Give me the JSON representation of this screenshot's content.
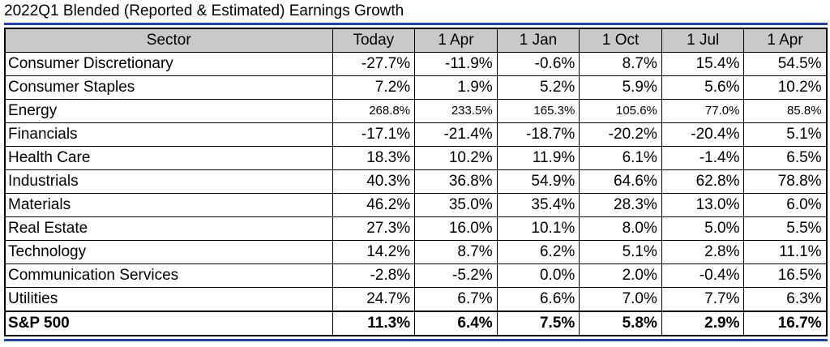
{
  "title": "2022Q1 Blended (Reported & Estimated) Earnings Growth",
  "colors": {
    "accent_rule": "#1f3fbf",
    "header_fill": "#c9c9c9"
  },
  "table": {
    "headers": [
      "Sector",
      "Today",
      "1 Apr",
      "1 Jan",
      "1 Oct",
      "1 Jul",
      "1 Apr"
    ],
    "rows": [
      {
        "sector": "Consumer Discretionary",
        "values": [
          "-27.7%",
          "-11.9%",
          "-0.6%",
          "8.7%",
          "15.4%",
          "54.5%"
        ]
      },
      {
        "sector": "Consumer Staples",
        "values": [
          "7.2%",
          "1.9%",
          "5.2%",
          "5.9%",
          "5.6%",
          "10.2%"
        ]
      },
      {
        "sector": "Energy",
        "values": [
          "268.8%",
          "233.5%",
          "165.3%",
          "105.6%",
          "77.0%",
          "85.8%"
        ]
      },
      {
        "sector": "Financials",
        "values": [
          "-17.1%",
          "-21.4%",
          "-18.7%",
          "-20.2%",
          "-20.4%",
          "5.1%"
        ]
      },
      {
        "sector": "Health Care",
        "values": [
          "18.3%",
          "10.2%",
          "11.9%",
          "6.1%",
          "-1.4%",
          "6.5%"
        ]
      },
      {
        "sector": "Industrials",
        "values": [
          "40.3%",
          "36.8%",
          "54.9%",
          "64.6%",
          "62.8%",
          "78.8%"
        ]
      },
      {
        "sector": "Materials",
        "values": [
          "46.2%",
          "35.0%",
          "35.4%",
          "28.3%",
          "13.0%",
          "6.0%"
        ]
      },
      {
        "sector": "Real Estate",
        "values": [
          "27.3%",
          "16.0%",
          "10.1%",
          "8.0%",
          "5.0%",
          "5.5%"
        ]
      },
      {
        "sector": "Technology",
        "values": [
          "14.2%",
          "8.7%",
          "6.2%",
          "5.1%",
          "2.8%",
          "11.1%"
        ]
      },
      {
        "sector": "Communication Services",
        "values": [
          "-2.8%",
          "-5.2%",
          "0.0%",
          "2.0%",
          "-0.4%",
          "16.5%"
        ]
      },
      {
        "sector": "Utilities",
        "values": [
          "24.7%",
          "6.7%",
          "6.6%",
          "7.0%",
          "7.7%",
          "6.3%"
        ]
      }
    ],
    "total": {
      "sector": "S&P 500",
      "values": [
        "11.3%",
        "6.4%",
        "7.5%",
        "5.8%",
        "2.9%",
        "16.7%"
      ]
    }
  }
}
